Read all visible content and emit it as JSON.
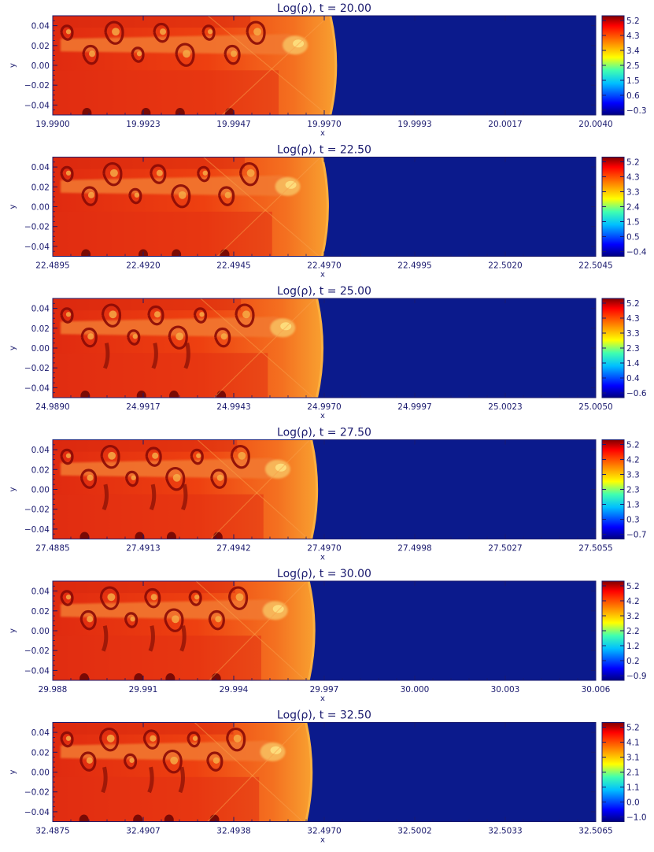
{
  "colors": {
    "vacuum": "#0b1a8c",
    "axis": "#1a1a6e",
    "colormap": [
      "#000080",
      "#0000ff",
      "#00c0ff",
      "#40ffb0",
      "#ffff00",
      "#ff8000",
      "#ff0000",
      "#800000"
    ]
  },
  "chart_data": [
    {
      "type": "heatmap",
      "title": "Log(ρ), t = 20.00",
      "xlabel": "x",
      "ylabel": "y",
      "x_ticks": [
        "19.9900",
        "19.9923",
        "19.9947",
        "19.9970",
        "19.9993",
        "20.0017",
        "20.0040"
      ],
      "y_ticks": [
        "0.04",
        "0.02",
        "0.00",
        "−0.02",
        "−0.04"
      ],
      "ylim": [
        -0.05,
        0.05
      ],
      "front_fraction": 0.52,
      "colorbar_ticks": [
        "5.2",
        "4.3",
        "3.4",
        "2.5",
        "1.5",
        "0.6",
        "−0.3"
      ]
    },
    {
      "type": "heatmap",
      "title": "Log(ρ), t = 22.50",
      "xlabel": "x",
      "ylabel": "y",
      "x_ticks": [
        "22.4895",
        "22.4920",
        "22.4945",
        "22.4970",
        "22.4995",
        "22.5020",
        "22.5045"
      ],
      "y_ticks": [
        "0.04",
        "0.02",
        "0.00",
        "−0.02",
        "−0.04"
      ],
      "ylim": [
        -0.05,
        0.05
      ],
      "front_fraction": 0.505,
      "colorbar_ticks": [
        "5.2",
        "4.3",
        "3.3",
        "2.4",
        "1.5",
        "0.5",
        "−0.4"
      ]
    },
    {
      "type": "heatmap",
      "title": "Log(ρ), t = 25.00",
      "xlabel": "x",
      "ylabel": "y",
      "x_ticks": [
        "24.9890",
        "24.9917",
        "24.9943",
        "24.9970",
        "24.9997",
        "25.0023",
        "25.0050"
      ],
      "y_ticks": [
        "0.04",
        "0.02",
        "0.00",
        "−0.02",
        "−0.04"
      ],
      "ylim": [
        -0.05,
        0.05
      ],
      "front_fraction": 0.495,
      "colorbar_ticks": [
        "5.2",
        "4.3",
        "3.3",
        "2.3",
        "1.4",
        "0.4",
        "−0.6"
      ]
    },
    {
      "type": "heatmap",
      "title": "Log(ρ), t = 27.50",
      "xlabel": "x",
      "ylabel": "y",
      "x_ticks": [
        "27.4885",
        "27.4913",
        "27.4942",
        "27.4970",
        "27.4998",
        "27.5027",
        "27.5055"
      ],
      "y_ticks": [
        "0.04",
        "0.02",
        "0.00",
        "−0.02",
        "−0.04"
      ],
      "ylim": [
        -0.05,
        0.05
      ],
      "front_fraction": 0.485,
      "colorbar_ticks": [
        "5.2",
        "4.2",
        "3.3",
        "2.3",
        "1.3",
        "0.3",
        "−0.7"
      ]
    },
    {
      "type": "heatmap",
      "title": "Log(ρ), t = 30.00",
      "xlabel": "x",
      "ylabel": "y",
      "x_ticks": [
        "29.988",
        "29.991",
        "29.994",
        "29.997",
        "30.000",
        "30.003",
        "30.006"
      ],
      "y_ticks": [
        "0.04",
        "0.02",
        "0.00",
        "−0.02",
        "−0.04"
      ],
      "ylim": [
        -0.05,
        0.05
      ],
      "front_fraction": 0.48,
      "colorbar_ticks": [
        "5.2",
        "4.2",
        "3.2",
        "2.2",
        "1.2",
        "0.2",
        "−0.9"
      ]
    },
    {
      "type": "heatmap",
      "title": "Log(ρ), t = 32.50",
      "xlabel": "x",
      "ylabel": "y",
      "x_ticks": [
        "32.4875",
        "32.4907",
        "32.4938",
        "32.4970",
        "32.5002",
        "32.5033",
        "32.5065"
      ],
      "y_ticks": [
        "0.04",
        "0.02",
        "0.00",
        "−0.02",
        "−0.04"
      ],
      "ylim": [
        -0.05,
        0.05
      ],
      "front_fraction": 0.475,
      "colorbar_ticks": [
        "5.2",
        "4.1",
        "3.1",
        "2.1",
        "1.1",
        "0.0",
        "−1.0"
      ]
    }
  ]
}
